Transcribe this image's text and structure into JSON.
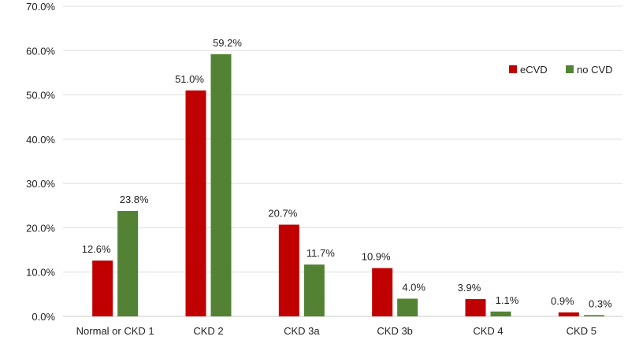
{
  "chart_data": {
    "type": "bar",
    "title": "",
    "xlabel": "",
    "ylabel": "",
    "ylim": [
      0,
      70
    ],
    "y_ticks": [
      "0.0%",
      "10.0%",
      "20.0%",
      "30.0%",
      "40.0%",
      "50.0%",
      "60.0%",
      "70.0%"
    ],
    "grid": true,
    "legend_position": "top-right",
    "categories": [
      "Normal or CKD 1",
      "CKD 2",
      "CKD 3a",
      "CKD 3b",
      "CKD 4",
      "CKD 5"
    ],
    "series": [
      {
        "name": "eCVD",
        "color": "#c00000",
        "values": [
          12.6,
          51.0,
          20.7,
          10.9,
          3.9,
          0.9
        ],
        "labels": [
          "12.6%",
          "51.0%",
          "20.7%",
          "10.9%",
          "3.9%",
          "0.9%"
        ]
      },
      {
        "name": "no CVD",
        "color": "#548235",
        "values": [
          23.8,
          59.2,
          11.7,
          4.0,
          1.1,
          0.3
        ],
        "labels": [
          "23.8%",
          "59.2%",
          "11.7%",
          "4.0%",
          "1.1%",
          "0.3%"
        ]
      }
    ]
  }
}
